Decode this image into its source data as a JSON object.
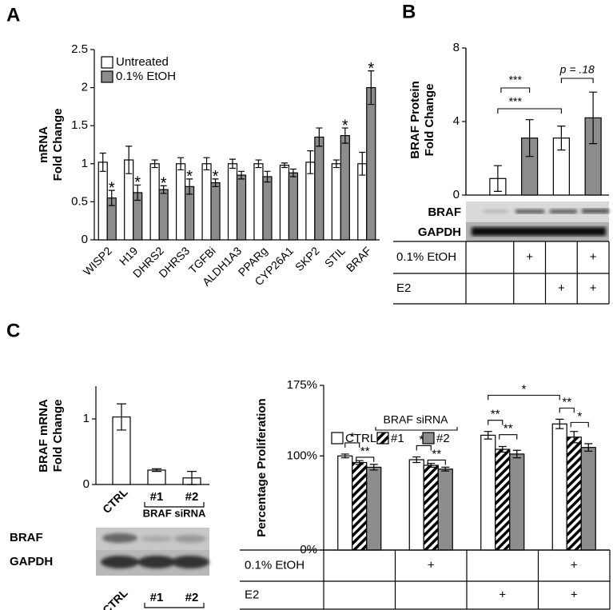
{
  "panel_labels": [
    "A",
    "B",
    "C"
  ],
  "chart_data": [
    {
      "type": "bar",
      "y_label": [
        "mRNA",
        "Fold Change"
      ],
      "ylim": [
        0,
        2.5
      ],
      "yticks": [
        0,
        0.5,
        1,
        1.5,
        2,
        2.5
      ],
      "legend": "top-left",
      "categories": [
        "WISP2",
        "H19",
        "DHRS2",
        "DHRS3",
        "TGFBi",
        "ALDH1A3",
        "PPARg",
        "CYP26A1",
        "SKP2",
        "STIL",
        "BRAF"
      ],
      "series": [
        {
          "name": "Untreated",
          "color": "#ffffff",
          "values": [
            1.02,
            1.05,
            1.0,
            1.0,
            1.0,
            1.0,
            1.0,
            0.98,
            1.02,
            1.0,
            1.0
          ],
          "errors": [
            0.12,
            0.18,
            0.05,
            0.08,
            0.08,
            0.06,
            0.05,
            0.03,
            0.15,
            0.05,
            0.15
          ]
        },
        {
          "name": "0.1% EtOH",
          "color": "#8c8c8c",
          "values": [
            0.55,
            0.62,
            0.66,
            0.7,
            0.75,
            0.85,
            0.83,
            0.88,
            1.35,
            1.37,
            2.0
          ],
          "errors": [
            0.1,
            0.1,
            0.05,
            0.1,
            0.05,
            0.05,
            0.07,
            0.05,
            0.12,
            0.1,
            0.22
          ],
          "annotations": [
            "*",
            "*",
            "*",
            "*",
            "*",
            null,
            null,
            null,
            null,
            "*",
            "*"
          ]
        }
      ]
    },
    {
      "type": "bar",
      "y_label": [
        "BRAF Protein",
        "Fold Change"
      ],
      "ylim": [
        0,
        8
      ],
      "yticks": [
        0,
        4,
        8
      ],
      "colors": [
        "#ffffff",
        "#8c8c8c",
        "#ffffff",
        "#8c8c8c"
      ],
      "values": [
        0.9,
        3.1,
        3.1,
        4.2
      ],
      "errors": [
        0.7,
        1.0,
        0.65,
        1.4
      ],
      "annotations": [
        "***",
        "***",
        "p = .18"
      ],
      "blot_labels": [
        "BRAF",
        "GAPDH"
      ],
      "conditions": [
        {
          "name": "0.1% EtOH",
          "values": [
            null,
            "+",
            null,
            "+"
          ]
        },
        {
          "name": "E2",
          "values": [
            null,
            null,
            "+",
            "+"
          ]
        }
      ]
    },
    {
      "type": "bar",
      "y_label": [
        "BRAF mRNA",
        "Fold Change"
      ],
      "ylim": [
        0,
        1.5
      ],
      "yticks": [
        0,
        1
      ],
      "color": "#ffffff",
      "categories": [
        "CTRL",
        "#1",
        "#2"
      ],
      "group_label": "BRAF siRNA",
      "values": [
        1.03,
        0.22,
        0.1
      ],
      "errors": [
        0.2,
        0.02,
        0.1
      ],
      "blot_labels": [
        "BRAF",
        "GAPDH"
      ]
    },
    {
      "type": "bar",
      "y_label": "Percentage Proliferation",
      "ylim": [
        0,
        175
      ],
      "yticks": [
        {
          "value": 0,
          "label": "0%"
        },
        {
          "value": 100,
          "label": "100%"
        },
        {
          "value": 175,
          "label": "175%"
        }
      ],
      "legend_title": "BRAF siRNA",
      "series": [
        {
          "name": "CTRL",
          "color": "#ffffff",
          "values": [
            100,
            96,
            122,
            134
          ],
          "errors": [
            2,
            3,
            4,
            5
          ]
        },
        {
          "name": "#1",
          "color": "#ffffff",
          "hatch": true,
          "values": [
            93,
            90,
            107,
            120
          ],
          "errors": [
            2,
            2,
            3,
            6
          ]
        },
        {
          "name": "#2",
          "color": "#8c8c8c",
          "values": [
            88,
            86,
            102,
            109
          ],
          "errors": [
            3,
            2,
            4,
            4
          ]
        }
      ],
      "annotations": [
        "*",
        "**",
        "**",
        "**",
        "**",
        "**",
        "*",
        "**",
        "*"
      ],
      "conditions": [
        {
          "name": "0.1% EtOH",
          "values": [
            null,
            "+",
            null,
            "+"
          ]
        },
        {
          "name": "E2",
          "values": [
            null,
            null,
            "+",
            "+"
          ]
        }
      ]
    }
  ]
}
